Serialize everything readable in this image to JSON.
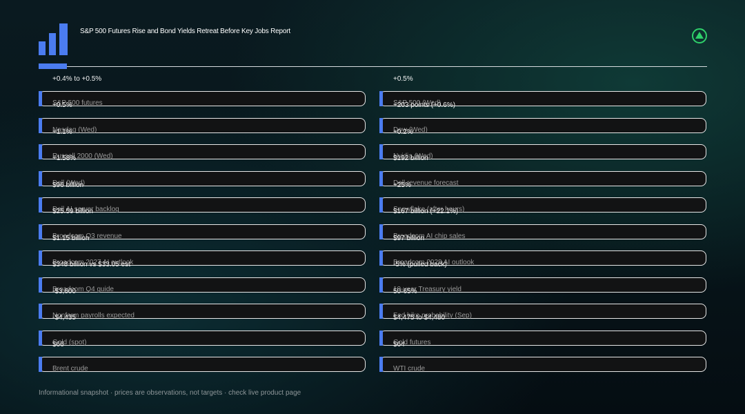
{
  "header": {
    "title": "S&P 500 Futures Rise and Bond Yields Retreat Before Key Jobs Report"
  },
  "columns": [
    {
      "lead": "+0.4% to +0.5%",
      "cards": [
        {
          "label": "S&P 500 futures",
          "value": "+0.5%"
        },
        {
          "label": "Nasdaq (Wed)",
          "value": "+1.1%"
        },
        {
          "label": "Russell 2000 (Wed)",
          "value": "+1.58%"
        },
        {
          "label": "Dell (Wed)",
          "value": "$96 billion"
        },
        {
          "label": "Dell AI server backlog",
          "value": "$25.59 billion"
        },
        {
          "label": "Broadcom Q3 revenue",
          "value": "$1.15 billion"
        },
        {
          "label": "Broadcom 2027 AI outlook",
          "value": "$348 billion vs $33.05 est"
        },
        {
          "label": "Broadcom Q4 guide",
          "value": "-$3,600"
        },
        {
          "label": "Nonfarm payrolls expected",
          "value": "-$4,435"
        },
        {
          "label": "Gold (spot)",
          "value": "$66"
        },
        {
          "label": "Brent crude"
        }
      ]
    },
    {
      "lead": "+0.5%",
      "cards": [
        {
          "label": "S&P 500 (Wed)",
          "value": "+203 points (+0.6%)"
        },
        {
          "label": "Dow (Wed)",
          "value": "+0.2%"
        },
        {
          "label": "Nvidia (Wed)",
          "value": "$192 billion"
        },
        {
          "label": "Dell revenue forecast",
          "value": "+25%"
        },
        {
          "label": "Snowflake (after hours)",
          "value": "$167 billion (+22.1%)"
        },
        {
          "label": "Broadcom AI chip sales",
          "value": "$97 billion"
        },
        {
          "label": "Broadcom 2028 AI outlook",
          "value": "-5% (pulled back)"
        },
        {
          "label": "10-year Treasury yield",
          "value": "50-65%"
        },
        {
          "label": "Fed hike probability (Sep)",
          "value": "$4,475 to $4,480"
        },
        {
          "label": "Gold futures",
          "value": "$64"
        },
        {
          "label": "WTI crude"
        }
      ]
    }
  ],
  "footer": "Informational snapshot · prices are observations, not targets · check live product page"
}
